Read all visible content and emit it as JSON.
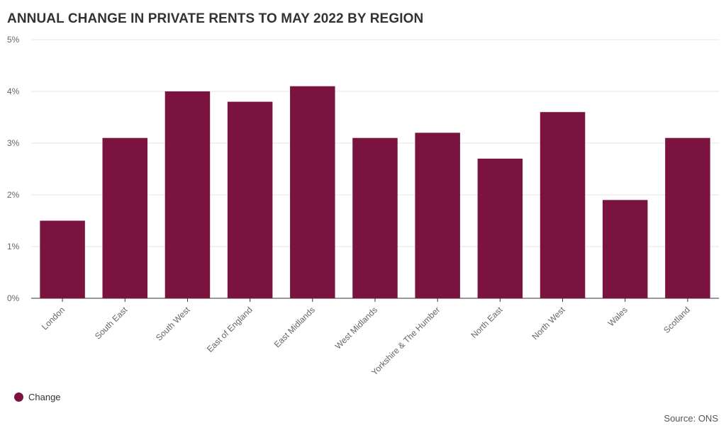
{
  "colors": {
    "bar": "#7b1340",
    "grid": "#e6e6e6",
    "axis": "#333333"
  },
  "footer": {
    "source": "Source: ONS"
  },
  "chart_data": {
    "type": "bar",
    "title": "ANNUAL CHANGE IN PRIVATE RENTS TO MAY 2022 BY REGION",
    "xlabel": "",
    "ylabel": "",
    "ylim": [
      0,
      5
    ],
    "yticks": [
      0,
      1,
      2,
      3,
      4,
      5
    ],
    "ytick_labels": [
      "0%",
      "1%",
      "2%",
      "3%",
      "4%",
      "5%"
    ],
    "grid": true,
    "legend_position": "bottom-left",
    "categories": [
      "London",
      "South East",
      "South West",
      "East of England",
      "East Midlands",
      "West Midlands",
      "Yorkshire & The Humber",
      "North East",
      "North West",
      "Wales",
      "Scotland"
    ],
    "series": [
      {
        "name": "Change",
        "values": [
          1.5,
          3.1,
          4.0,
          3.8,
          4.1,
          3.1,
          3.2,
          2.7,
          3.6,
          1.9,
          3.1
        ]
      }
    ]
  }
}
